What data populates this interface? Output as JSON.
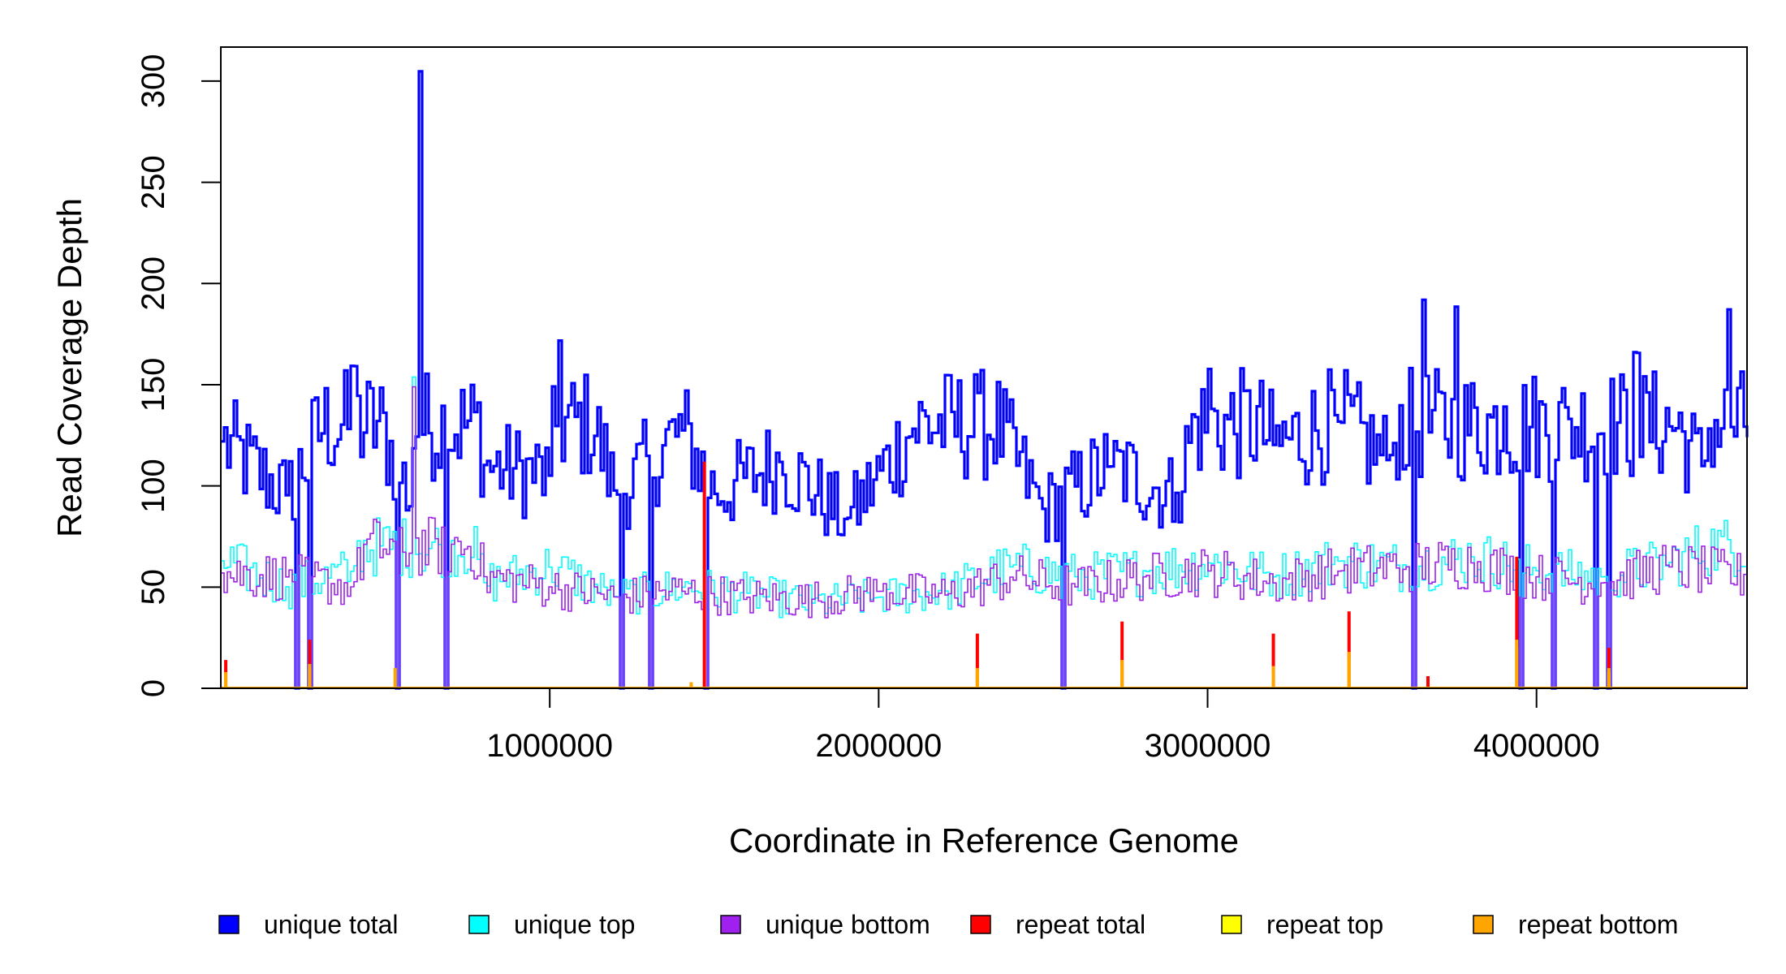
{
  "chart_data": {
    "type": "line",
    "xlabel": "Coordinate in Reference Genome",
    "ylabel": "Read Coverage Depth",
    "xlim": [
      1,
      4640000
    ],
    "ylim": [
      0,
      312
    ],
    "x_ticks": [
      {
        "value": 1000000,
        "label": "1000000"
      },
      {
        "value": 2000000,
        "label": "2000000"
      },
      {
        "value": 3000000,
        "label": "3000000"
      },
      {
        "value": 4000000,
        "label": "4000000"
      }
    ],
    "y_ticks": [
      {
        "value": 0,
        "label": "0"
      },
      {
        "value": 50,
        "label": "50"
      },
      {
        "value": 100,
        "label": "100"
      },
      {
        "value": 150,
        "label": "150"
      },
      {
        "value": 200,
        "label": "200"
      },
      {
        "value": 250,
        "label": "250"
      },
      {
        "value": 300,
        "label": "300"
      }
    ],
    "legend_position": "bottom",
    "series": [
      {
        "name": "unique total",
        "color": "#0000ff",
        "x": [
          1,
          200000,
          400000,
          580000,
          600000,
          800000,
          1000000,
          1030000,
          1200000,
          1400000,
          1500000,
          1700000,
          1900000,
          2100000,
          2300000,
          2500000,
          2700000,
          2900000,
          3000000,
          3200000,
          3400000,
          3550000,
          3650000,
          3750000,
          3900000,
          4100000,
          4300000,
          4500000,
          4580000,
          4640000
        ],
        "y": [
          122,
          95,
          161,
          92,
          307,
          110,
          105,
          180,
          95,
          128,
          96,
          112,
          83,
          128,
          146,
          88,
          110,
          95,
          158,
          120,
          132,
          112,
          192,
          189,
          139,
          133,
          167,
          108,
          188,
          124
        ]
      },
      {
        "name": "unique top",
        "color": "#00ffff",
        "x": [
          1,
          200000,
          400000,
          580000,
          800000,
          1000000,
          1200000,
          1400000,
          1600000,
          1800000,
          2000000,
          2200000,
          2400000,
          2600000,
          2800000,
          3000000,
          3200000,
          3400000,
          3600000,
          3800000,
          4000000,
          4200000,
          4400000,
          4640000
        ],
        "y": [
          63,
          50,
          58,
          155,
          52,
          60,
          45,
          50,
          47,
          42,
          45,
          48,
          60,
          55,
          58,
          62,
          55,
          63,
          60,
          65,
          58,
          55,
          62,
          78
        ]
      },
      {
        "name": "unique bottom",
        "color": "#a020f0",
        "x": [
          1,
          200000,
          400000,
          580000,
          800000,
          1000000,
          1200000,
          1400000,
          1600000,
          1800000,
          2000000,
          2200000,
          2400000,
          2600000,
          2800000,
          3000000,
          3200000,
          3400000,
          3600000,
          3800000,
          4000000,
          4200000,
          4400000,
          4640000
        ],
        "y": [
          57,
          55,
          50,
          150,
          55,
          50,
          45,
          48,
          45,
          44,
          48,
          46,
          55,
          50,
          55,
          58,
          52,
          58,
          60,
          62,
          55,
          52,
          60,
          55
        ]
      },
      {
        "name": "repeat total",
        "color": "#ff0000",
        "x": [
          15000,
          270000,
          1470000,
          2300000,
          2740000,
          3200000,
          3430000,
          3670000,
          3940000,
          4220000
        ],
        "y": [
          14,
          24,
          112,
          27,
          33,
          27,
          38,
          6,
          65,
          20
        ]
      },
      {
        "name": "repeat top",
        "color": "#ffff00",
        "x": [
          15000,
          270000,
          2300000,
          2740000,
          3200000,
          3430000,
          3940000,
          4220000
        ],
        "y": [
          6,
          10,
          8,
          12,
          8,
          14,
          20,
          8
        ]
      },
      {
        "name": "repeat bottom",
        "color": "#ffa500",
        "x": [
          15000,
          270000,
          530000,
          1430000,
          2300000,
          2740000,
          3200000,
          3430000,
          3940000,
          4220000
        ],
        "y": [
          8,
          12,
          10,
          3,
          10,
          14,
          11,
          18,
          24,
          10
        ]
      }
    ]
  }
}
